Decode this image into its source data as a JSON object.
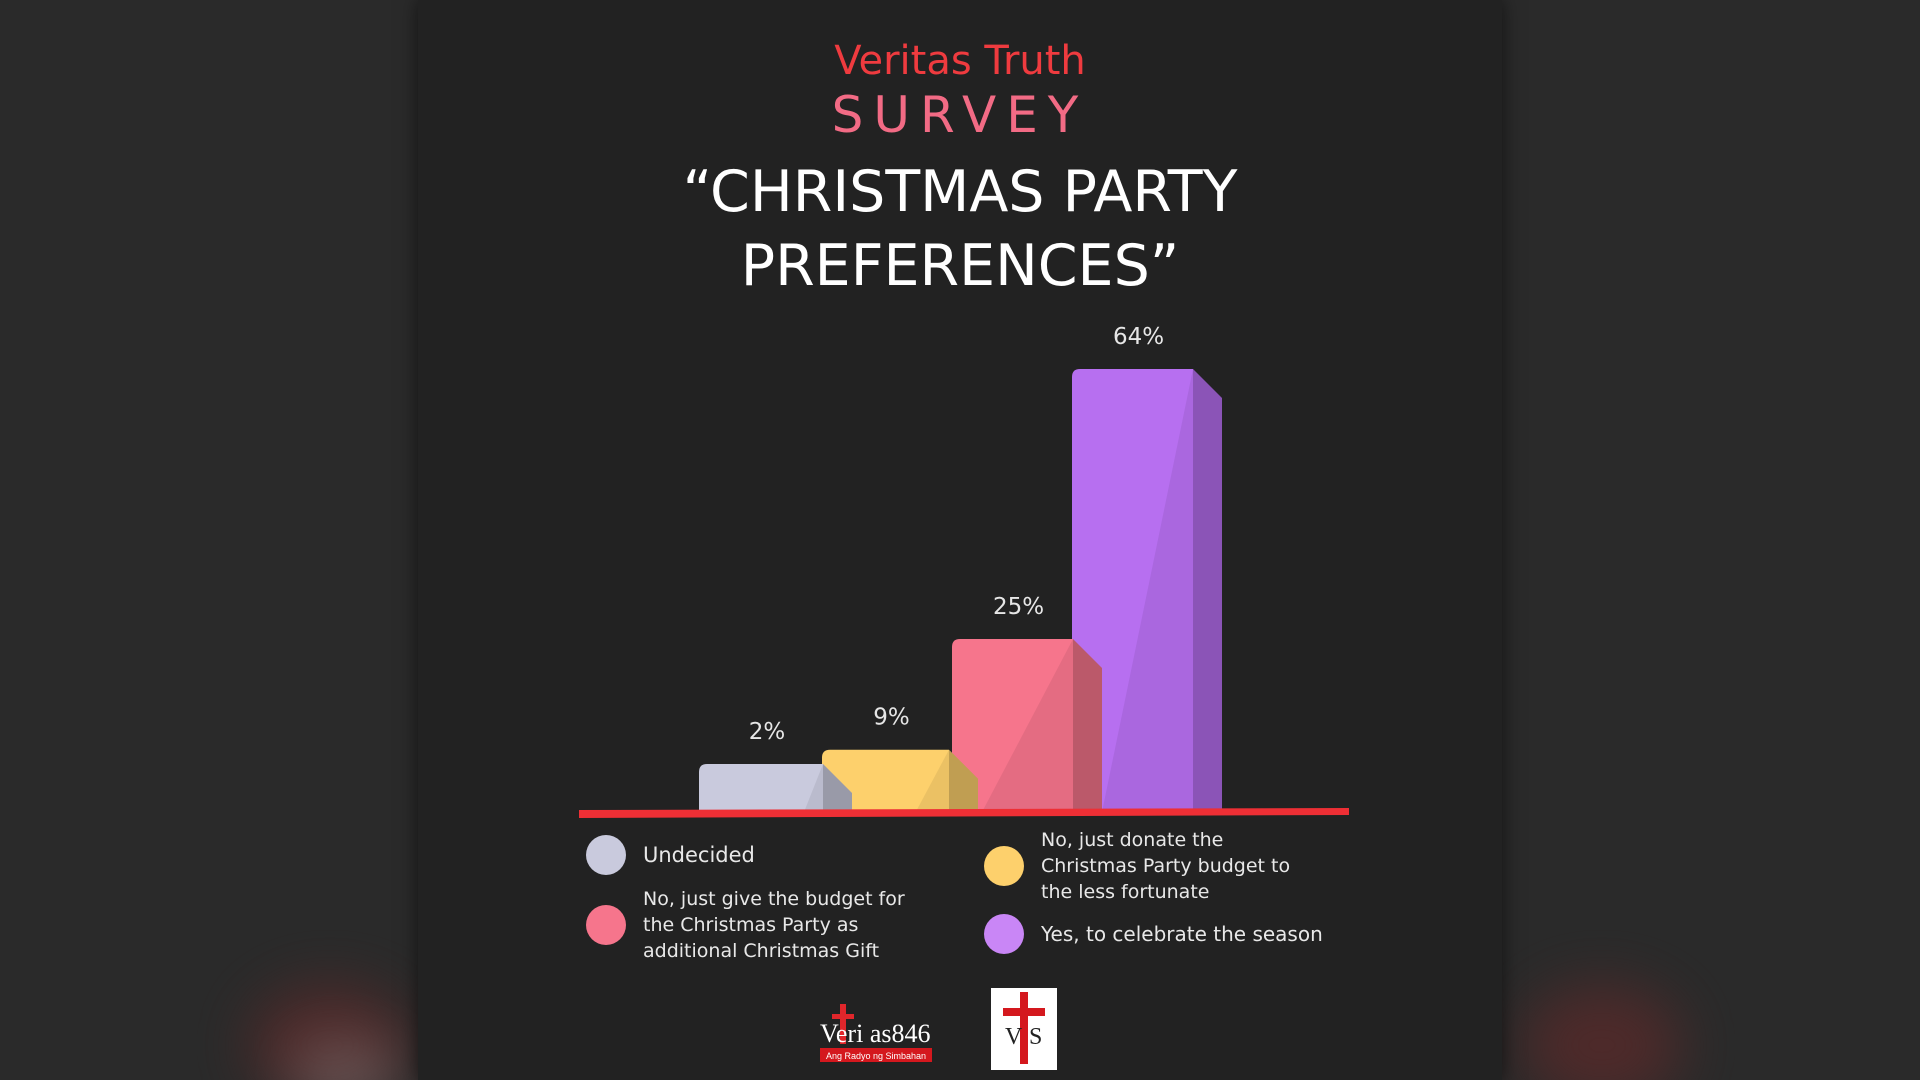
{
  "header": {
    "brand": "Veritas Truth",
    "survey": "SURVEY",
    "title": "“CHRISTMAS PARTY PREFERENCES”"
  },
  "colors": {
    "background": "#222222",
    "brand_red": "#ef3b3f",
    "survey_pink": "#f26b85",
    "axis_line": "#ee2f35"
  },
  "chart_data": {
    "type": "bar",
    "title": "“CHRISTMAS PARTY PREFERENCES”",
    "categories": [
      "Undecided",
      "No, just donate the Christmas Party budget to the less fortunate",
      "No, just give the budget for the Christmas Party as additional Christmas Gift",
      "Yes, to celebrate the season"
    ],
    "values": [
      2,
      9,
      25,
      64
    ],
    "value_labels": [
      "2%",
      "9%",
      "25%",
      "64%"
    ],
    "unit": "%",
    "colors": [
      "#c9cadd",
      "#fdd06c",
      "#f6758c",
      "#b76ff0"
    ],
    "ylim": [
      0,
      64
    ],
    "grid": false,
    "legend_position": "bottom"
  },
  "legend": [
    {
      "label": "Undecided",
      "color": "#c9cadd"
    },
    {
      "label": "No, just donate the Christmas Party budget to the less fortunate",
      "color": "#fdd06c"
    },
    {
      "label": "No, just give the budget for the Christmas Party as additional Christmas Gift",
      "color": "#f6758c"
    },
    {
      "label": "Yes, to celebrate the season",
      "color": "#c986f6"
    }
  ],
  "logos": {
    "veritas_main": "Veri  as846",
    "veritas_tagline": "Ang Radyo ng Simbahan",
    "vts_left": "V",
    "vts_right": "S"
  }
}
